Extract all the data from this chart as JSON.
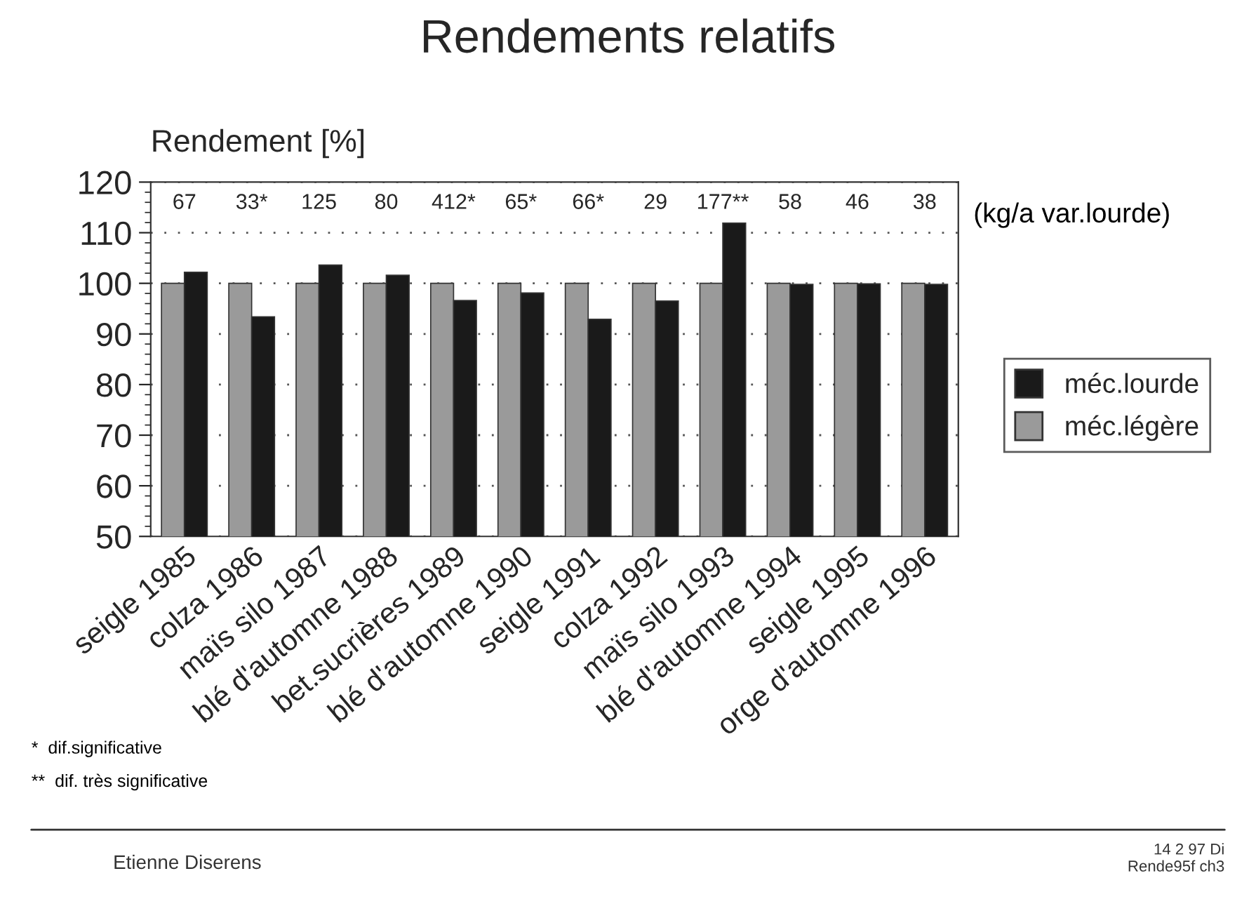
{
  "chart_data": {
    "type": "bar",
    "title": "Rendements relatifs",
    "ylabel": "Rendement [%]",
    "categories": [
      "seigle 1985",
      "colza 1986",
      "maïs silo 1987",
      "blé d'automne 1988",
      "bet.sucrières 1989",
      "blé d'automne 1990",
      "seigle 1991",
      "colza 1992",
      "maïs silo 1993",
      "blé d'automne 1994",
      "seigle 1995",
      "orge d'automne 1996"
    ],
    "series": [
      {
        "name": "méc.légère",
        "color": "#9a9a9a",
        "values": [
          100,
          100,
          100,
          100,
          100,
          100,
          100,
          100,
          100,
          100,
          100,
          100
        ]
      },
      {
        "name": "méc.lourde",
        "color": "#1a1a1a",
        "values": [
          102.2,
          93.4,
          103.6,
          101.6,
          96.6,
          98.1,
          92.9,
          96.5,
          111.9,
          99.8,
          99.9,
          99.8
        ]
      }
    ],
    "ylim": [
      50,
      120
    ],
    "yticks": [
      50,
      60,
      70,
      80,
      90,
      100,
      110,
      120
    ],
    "grid": "y",
    "legend": "right",
    "annotations": [
      "67",
      "33*",
      "125",
      "80",
      "412*",
      "65*",
      "66*",
      "29",
      "177**",
      "58",
      "46",
      "38",
      "(kg/a var.lourde)",
      "*  dif.significative",
      "**  dif. très significative",
      "Etienne Diserens",
      "14 2 97 Di",
      "Rende95f ch3"
    ]
  }
}
